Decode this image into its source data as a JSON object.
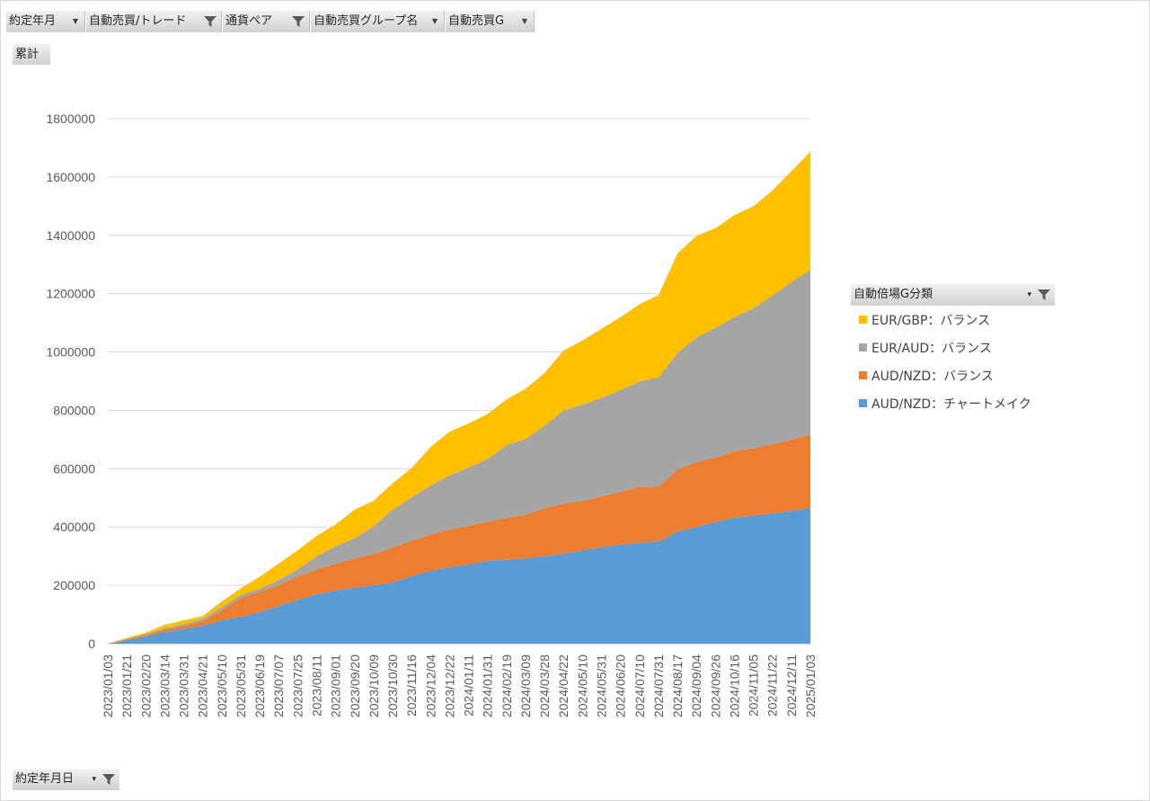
{
  "filters": [
    {
      "label": "約定年月",
      "icon": "dropdown-arrow-icon"
    },
    {
      "label": "自動売買/トレード",
      "icon": "filter-funnel-icon"
    },
    {
      "label": "通貨ペア",
      "icon": "filter-funnel-icon"
    },
    {
      "label": "自動売買グループ名",
      "icon": "dropdown-arrow-icon"
    },
    {
      "label": "自動売買G",
      "icon": "dropdown-arrow-icon"
    }
  ],
  "value_button": "累計",
  "axis_button": "約定年月日",
  "legend": {
    "title": "自動倍場G分類",
    "items": [
      {
        "label": "EUR/GBP：バランス",
        "color": "#FFC000"
      },
      {
        "label": "EUR/AUD：バランス",
        "color": "#A5A5A5"
      },
      {
        "label": "AUD/NZD：バランス",
        "color": "#ED7D31"
      },
      {
        "label": "AUD/NZD：チャートメイク",
        "color": "#5B9BD5"
      }
    ]
  },
  "chart_data": {
    "type": "area",
    "stacked": true,
    "ylim": [
      0,
      1800000
    ],
    "yticks": [
      0,
      200000,
      400000,
      600000,
      800000,
      1000000,
      1200000,
      1400000,
      1600000,
      1800000
    ],
    "grid": true,
    "legend_position": "right",
    "x": [
      "2023/01/03",
      "2023/01/21",
      "2023/02/20",
      "2023/03/14",
      "2023/03/31",
      "2023/04/21",
      "2023/05/10",
      "2023/05/31",
      "2023/06/19",
      "2023/07/07",
      "2023/07/25",
      "2023/08/11",
      "2023/09/01",
      "2023/09/20",
      "2023/10/09",
      "2023/10/30",
      "2023/11/16",
      "2023/12/04",
      "2023/12/22",
      "2024/01/11",
      "2024/01/31",
      "2024/02/19",
      "2024/03/09",
      "2024/03/28",
      "2024/04/22",
      "2024/05/10",
      "2024/05/31",
      "2024/06/20",
      "2024/07/10",
      "2024/07/31",
      "2024/08/17",
      "2024/09/04",
      "2024/09/26",
      "2024/10/16",
      "2024/11/05",
      "2024/11/22",
      "2024/12/11",
      "2025/01/03"
    ],
    "series": [
      {
        "name": "AUD/NZD：チャートメイク",
        "color": "#5B9BD5",
        "values": [
          0,
          12000,
          25000,
          40000,
          50000,
          62000,
          80000,
          92000,
          108000,
          130000,
          150000,
          170000,
          182000,
          192000,
          200000,
          210000,
          232000,
          250000,
          262000,
          272000,
          283000,
          288000,
          292000,
          300000,
          308000,
          320000,
          330000,
          340000,
          346000,
          350000,
          385000,
          400000,
          418000,
          432000,
          440000,
          446000,
          455000,
          465000
        ]
      },
      {
        "name": "AUD/NZD：バランス",
        "color": "#ED7D31",
        "values": [
          0,
          3000,
          5000,
          8000,
          10000,
          15000,
          35000,
          65000,
          70000,
          72000,
          80000,
          85000,
          92000,
          100000,
          108000,
          120000,
          120000,
          125000,
          130000,
          132000,
          135000,
          143000,
          150000,
          165000,
          172000,
          170000,
          175000,
          180000,
          193000,
          188000,
          213000,
          222000,
          220000,
          228000,
          230000,
          238000,
          245000,
          252000
        ]
      },
      {
        "name": "EUR/AUD：バランス",
        "color": "#A5A5A5",
        "values": [
          0,
          1000,
          3000,
          5000,
          7000,
          8000,
          10000,
          10000,
          10000,
          16000,
          25000,
          45000,
          60000,
          70000,
          95000,
          130000,
          150000,
          168000,
          185000,
          200000,
          215000,
          250000,
          260000,
          283000,
          320000,
          330000,
          338000,
          350000,
          360000,
          375000,
          400000,
          428000,
          445000,
          460000,
          480000,
          510000,
          540000,
          566000
        ]
      },
      {
        "name": "EUR/GBP：バランス",
        "color": "#FFC000",
        "values": [
          0,
          4000,
          5000,
          12000,
          13000,
          10000,
          20000,
          23000,
          42000,
          57000,
          65000,
          70000,
          75000,
          98000,
          87000,
          90000,
          100000,
          132000,
          150000,
          151000,
          155000,
          157000,
          172000,
          180000,
          205000,
          220000,
          237000,
          250000,
          265000,
          282000,
          340000,
          348000,
          342000,
          350000,
          350000,
          360000,
          380000,
          404000
        ]
      }
    ]
  }
}
